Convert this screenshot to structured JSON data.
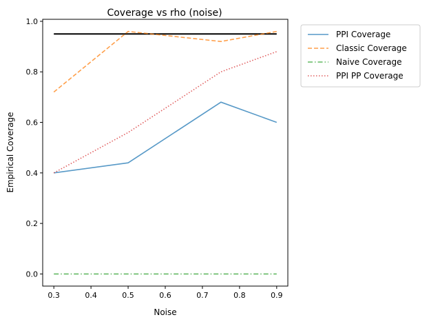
{
  "chart_data": {
    "type": "line",
    "title": "Coverage vs rho (noise)",
    "xlabel": "Noise",
    "ylabel": "Empirical Coverage",
    "x": [
      0.3,
      0.5,
      0.75,
      0.9
    ],
    "xlim": [
      0.27,
      0.93
    ],
    "ylim": [
      -0.048,
      1.008
    ],
    "xticks": [
      0.3,
      0.4,
      0.5,
      0.6,
      0.7,
      0.8,
      0.9
    ],
    "yticks": [
      0.0,
      0.2,
      0.4,
      0.6,
      0.8,
      1.0
    ],
    "xtick_labels": [
      "0.3",
      "0.4",
      "0.5",
      "0.6",
      "0.7",
      "0.8",
      "0.9"
    ],
    "ytick_labels": [
      "0.0",
      "0.2",
      "0.4",
      "0.6",
      "0.8",
      "1.0"
    ],
    "grid": false,
    "legend_position": "outside-upper-right",
    "reference_line": {
      "y": 0.95,
      "color": "#000000"
    },
    "series": [
      {
        "name": "PPI Coverage",
        "values": [
          0.4,
          0.44,
          0.68,
          0.6
        ],
        "color": "#1f77b4",
        "dash": "solid"
      },
      {
        "name": "Classic Coverage",
        "values": [
          0.72,
          0.96,
          0.92,
          0.96
        ],
        "color": "#ff7f0e",
        "dash": "dashed"
      },
      {
        "name": "Naive Coverage",
        "values": [
          0.0,
          0.0,
          0.0,
          0.0
        ],
        "color": "#2ca02c",
        "dash": "dashdot"
      },
      {
        "name": "PPI PP Coverage",
        "values": [
          0.4,
          0.56,
          0.8,
          0.88
        ],
        "color": "#d62728",
        "dash": "dotted"
      }
    ]
  }
}
